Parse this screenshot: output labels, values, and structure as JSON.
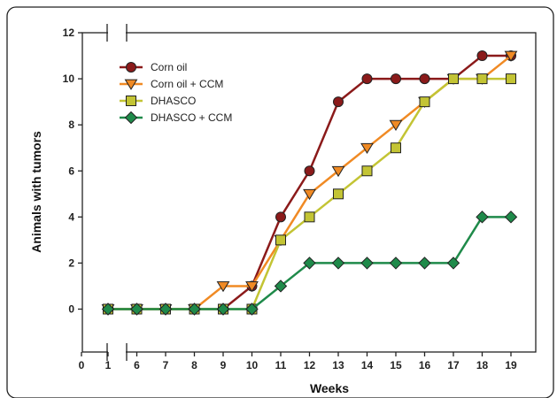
{
  "chart_data": {
    "type": "line",
    "title": "",
    "xlabel": "Weeks",
    "ylabel": "Animals with tumors",
    "x_ticks": [
      "0",
      "1",
      "6",
      "7",
      "8",
      "9",
      "10",
      "11",
      "12",
      "13",
      "14",
      "15",
      "16",
      "17",
      "18",
      "19"
    ],
    "y_ticks": [
      "0",
      "2",
      "4",
      "6",
      "8",
      "10",
      "12"
    ],
    "ylim": [
      -1.6,
      12
    ],
    "axis_break": "between weeks 1 and 6",
    "grid": false,
    "legend_position": "top-left",
    "x": [
      1,
      6,
      7,
      8,
      9,
      10,
      11,
      12,
      13,
      14,
      15,
      16,
      17,
      18,
      19
    ],
    "series": [
      {
        "name": "Corn oil",
        "marker": "circle",
        "color": "#8b1a1a",
        "values": [
          0,
          0,
          0,
          0,
          0,
          1,
          4,
          6,
          9,
          10,
          10,
          10,
          10,
          11,
          11
        ]
      },
      {
        "name": "Corn oil + CCM",
        "marker": "triangle-down",
        "color": "#f08a24",
        "values": [
          0,
          0,
          0,
          0,
          1,
          1,
          3,
          5,
          6,
          7,
          8,
          9,
          10,
          10,
          11
        ]
      },
      {
        "name": "DHASCO",
        "marker": "square",
        "color": "#c3c434",
        "values": [
          0,
          0,
          0,
          0,
          0,
          0,
          3,
          4,
          5,
          6,
          7,
          9,
          10,
          10,
          10
        ]
      },
      {
        "name": "DHASCO + CCM",
        "marker": "diamond",
        "color": "#1f8a4a",
        "values": [
          0,
          0,
          0,
          0,
          0,
          0,
          1,
          2,
          2,
          2,
          2,
          2,
          2,
          4,
          4
        ]
      }
    ]
  }
}
